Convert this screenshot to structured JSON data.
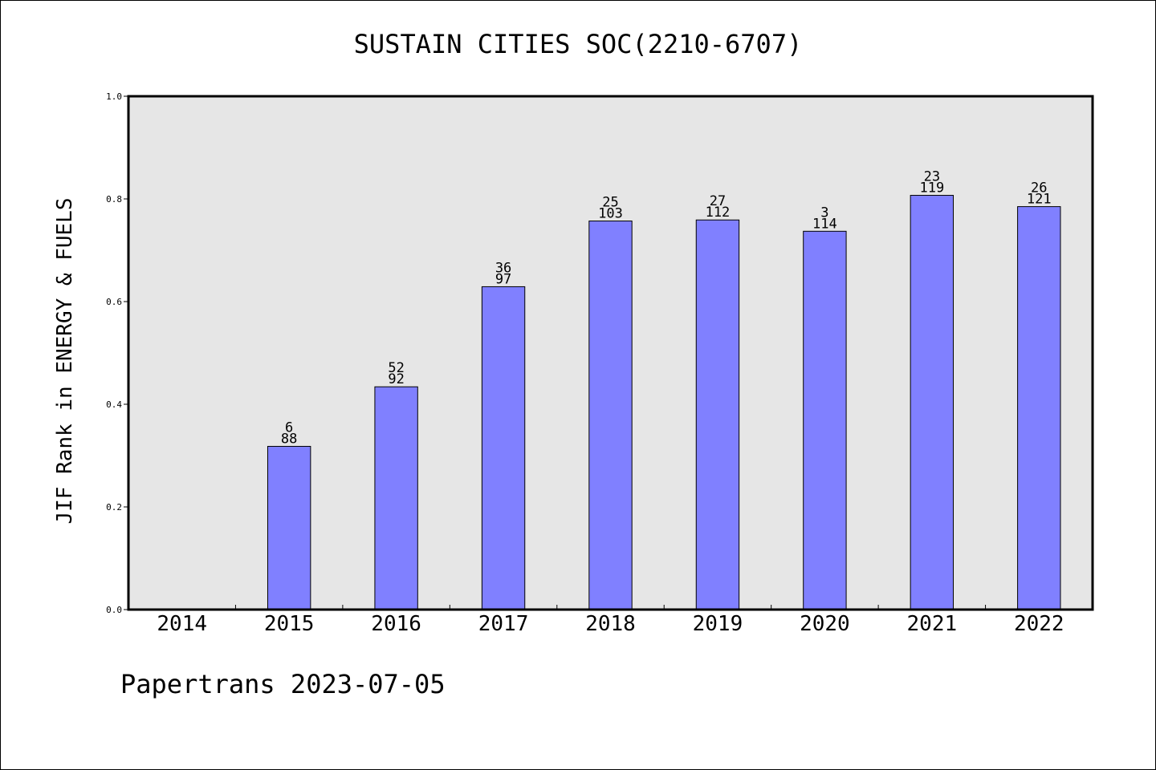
{
  "chart_data": {
    "type": "bar",
    "title": "SUSTAIN CITIES SOC(2210-6707)",
    "ylabel": "JIF Rank in ENERGY & FUELS",
    "xlabel": "",
    "categories": [
      "2014",
      "2015",
      "2016",
      "2017",
      "2018",
      "2019",
      "2020",
      "2021",
      "2022"
    ],
    "values": [
      null,
      0.318,
      0.434,
      0.629,
      0.757,
      0.759,
      0.737,
      0.807,
      0.785
    ],
    "labels_top": [
      "",
      "6",
      "52",
      "36",
      "25",
      "27",
      "3",
      "23",
      "26"
    ],
    "labels_bottom": [
      "",
      "88",
      "92",
      "97",
      "103",
      "112",
      "114",
      "119",
      "121"
    ],
    "ylim": [
      0,
      1.0
    ],
    "yticks": [
      "0.0",
      "0.2",
      "0.4",
      "0.6",
      "0.8",
      "1.0"
    ],
    "bar_color": "#8080ff",
    "plot_background": "#e6e6e6",
    "grid": false,
    "legend": "none"
  },
  "footer": {
    "text": "Papertrans 2023-07-05"
  }
}
